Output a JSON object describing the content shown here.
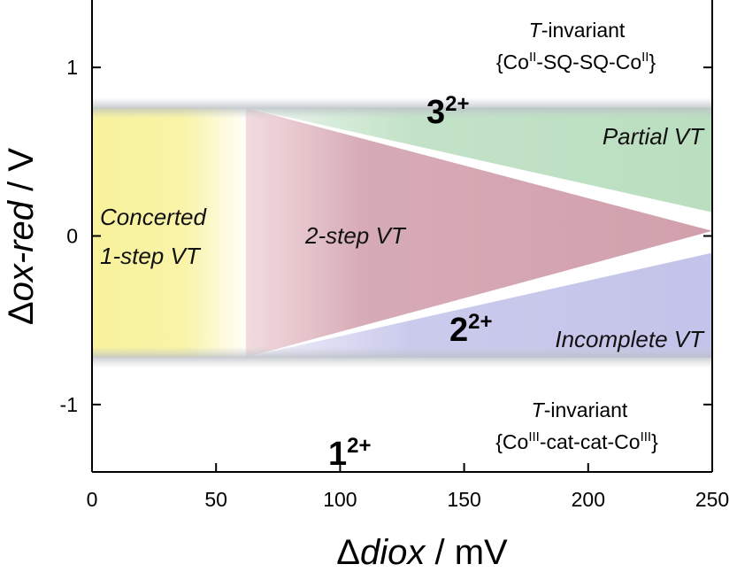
{
  "chart_data": {
    "type": "area",
    "title": "",
    "xlabel": {
      "delta": "Δ",
      "italic": "diox",
      "rest": " / mV"
    },
    "ylabel": {
      "delta": "Δ",
      "italic": "ox-red",
      "rest": " / V"
    },
    "xlim": [
      0,
      250
    ],
    "ylim": [
      -1.4,
      1.4
    ],
    "x_ticks": [
      0,
      50,
      100,
      150,
      200,
      250
    ],
    "x_tick_labels": [
      "0",
      "50",
      "100",
      "150",
      "200",
      "250"
    ],
    "y_ticks": [
      -1,
      0,
      1
    ],
    "y_tick_labels": [
      "-1",
      "0",
      "1"
    ],
    "grid": false,
    "band": {
      "y_min": -0.72,
      "y_max": 0.76
    },
    "regions": [
      {
        "name": "Concerted 1-step VT",
        "color": "#f7f08a",
        "polygon": [
          [
            0,
            0.76
          ],
          [
            45,
            0.76
          ],
          [
            62,
            0.76
          ],
          [
            62,
            -0.72
          ],
          [
            45,
            -0.72
          ],
          [
            0,
            -0.72
          ]
        ]
      },
      {
        "name": "2-step VT",
        "color": "#c98f9d",
        "polygon": [
          [
            62,
            0.76
          ],
          [
            250,
            0.03
          ],
          [
            62,
            -0.72
          ]
        ]
      },
      {
        "name": "Partial VT",
        "color": "#a9d6b0",
        "polygon": [
          [
            62,
            0.76
          ],
          [
            250,
            0.76
          ],
          [
            250,
            0.14
          ]
        ]
      },
      {
        "name": "Incomplete VT",
        "color": "#b9b9e6",
        "polygon": [
          [
            62,
            -0.72
          ],
          [
            250,
            -0.72
          ],
          [
            250,
            -0.1
          ]
        ]
      }
    ],
    "region_labels": {
      "concerted_line1": "Concerted",
      "concerted_line2": "1-step VT",
      "two_step": "2-step VT",
      "partial": "Partial VT",
      "incomplete": "Incomplete VT"
    },
    "annotations": {
      "top_invariant": {
        "line1_italic": "T",
        "line1_rest": "-invariant",
        "line2_open": "{Co",
        "line2_sup1": "II",
        "line2_mid": "-SQ-SQ-Co",
        "line2_sup2": "II",
        "line2_close": "}"
      },
      "bottom_invariant": {
        "line1_italic": "T",
        "line1_rest": "-invariant",
        "line2_open": "{Co",
        "line2_sup1": "III",
        "line2_mid": "-cat-cat-Co",
        "line2_sup2": "III",
        "line2_close": "}"
      },
      "species_3": {
        "base": "3",
        "charge": "2+"
      },
      "species_2": {
        "base": "2",
        "charge": "2+"
      },
      "species_1": {
        "base": "1",
        "charge": "2+"
      }
    },
    "colors": {
      "axis": "#000000",
      "band_edge": "#c8ccd0",
      "yellow": "#f7f08a",
      "red": "#c98f9d",
      "green": "#a9d6b0",
      "blue": "#b9b9e6"
    }
  }
}
